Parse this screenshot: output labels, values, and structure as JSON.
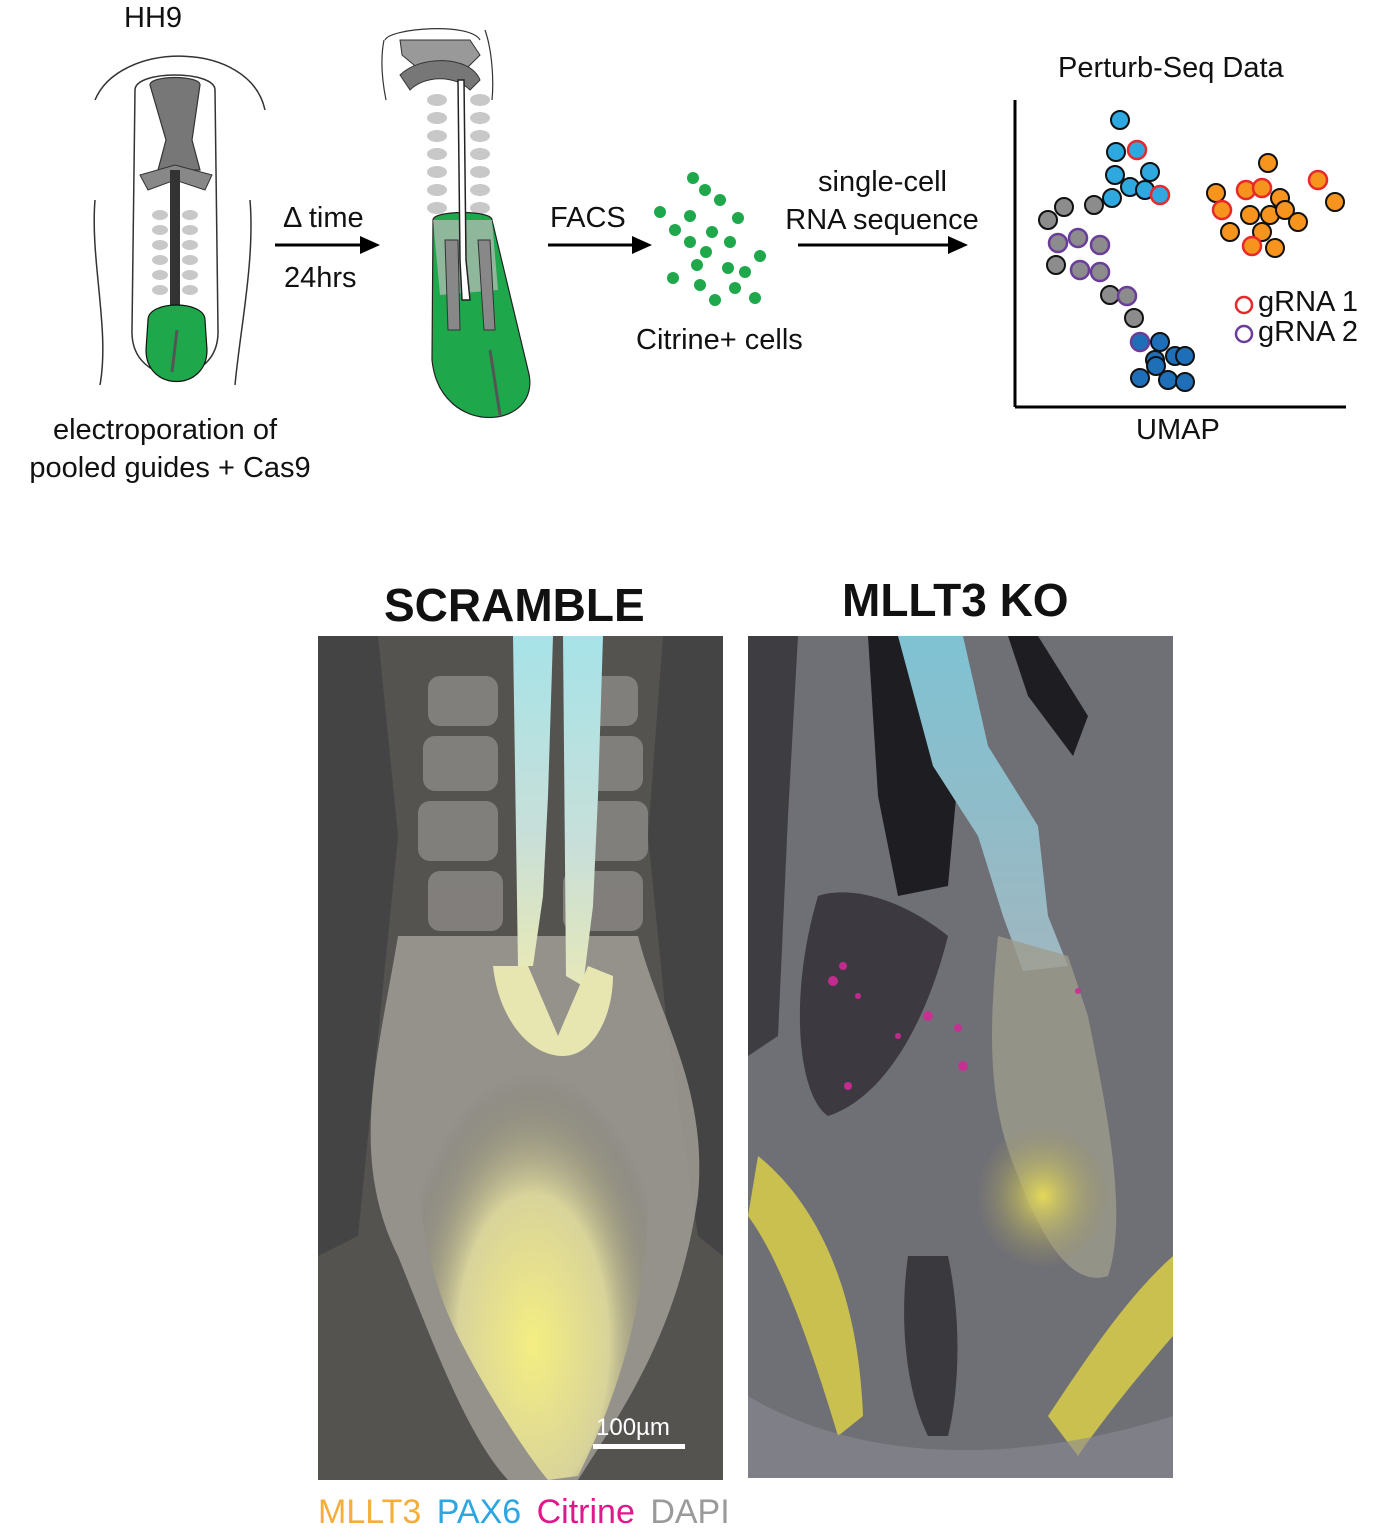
{
  "top_panel": {
    "stage_label": "HH9",
    "electroporation_caption_line1": "electroporation of",
    "electroporation_caption_line2": "pooled guides + Cas9",
    "arrow1_label_top": "Δ time",
    "arrow1_label_bottom": "24hrs",
    "facs_label": "FACS",
    "cells_caption": "Citrine+ cells",
    "arrow3_label_line1": "single-cell",
    "arrow3_label_line2": "RNA sequence",
    "plot_title": "Perturb-Seq Data",
    "plot_xlabel": "UMAP",
    "legend": [
      {
        "label": "gRNA 1",
        "color": "#e8282b"
      },
      {
        "label": "gRNA 2",
        "color": "#6a3d9a"
      }
    ]
  },
  "bottom_panel": {
    "left_title": "SCRAMBLE",
    "right_title": "MLLT3 KO",
    "scale_bar": "100µm",
    "channels": [
      {
        "label": "MLLT3",
        "color": "#f5ad3b"
      },
      {
        "label": "PAX6",
        "color": "#2ea7e0"
      },
      {
        "label": "Citrine",
        "color": "#e0188c"
      },
      {
        "label": "DAPI",
        "color": "#9a9a9a"
      }
    ]
  },
  "colors": {
    "electroporated_green": "#1fa84b",
    "cell_light_blue": "#2fa8e0",
    "cell_dark_blue": "#1f6fb8",
    "cell_orange": "#f7941d",
    "cell_gray": "#8c8c8c"
  }
}
